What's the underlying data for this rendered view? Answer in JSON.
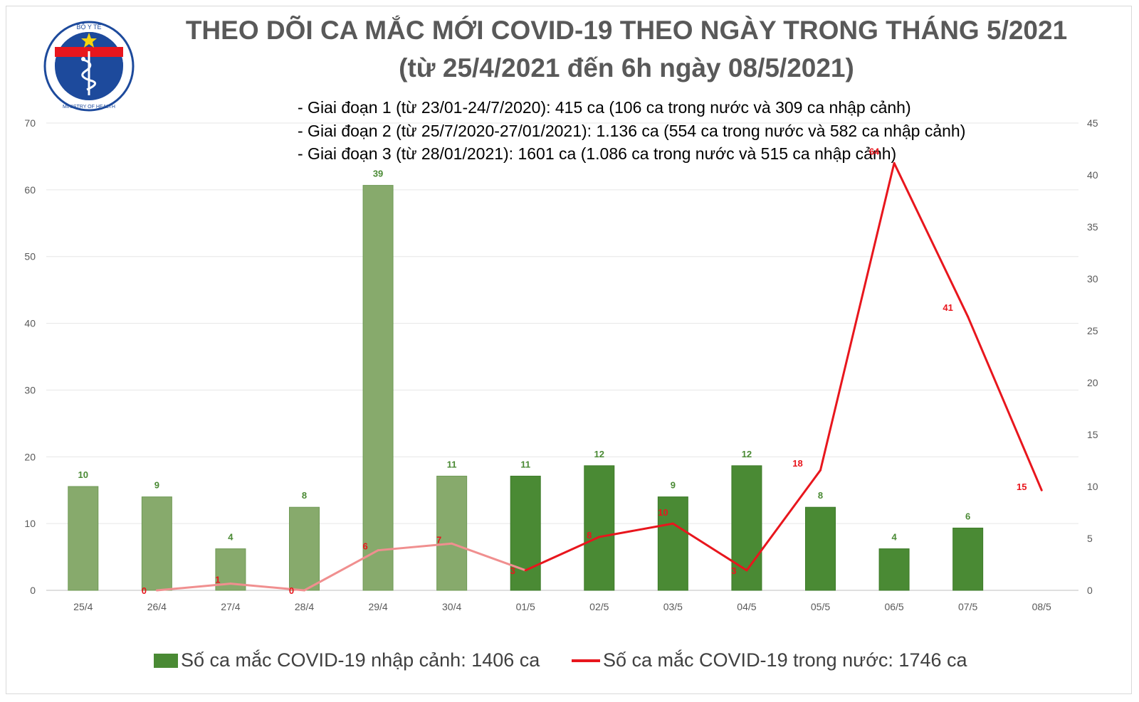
{
  "title": "THEO DÕI CA MẮC MỚI COVID-19 THEO NGÀY TRONG THÁNG 5/2021",
  "subtitle": "(từ 25/4/2021 đến 6h ngày 08/5/2021)",
  "notes": [
    "- Giai đoạn 1 (từ 23/01-24/7/2020): 415 ca (106 ca trong nước và 309 ca nhập cảnh)",
    "- Giai đoạn 2 (từ 25/7/2020-27/01/2021): 1.136 ca (554 ca trong nước và 582 ca nhập cảnh)",
    "- Giai đoạn 3 (từ 28/01/2021): 1601 ca (1.086 ca trong nước và 515 ca nhập cảnh)"
  ],
  "logo": {
    "top_text": "BỘ Y TẾ",
    "bottom_text": "MINISTRY OF HEALTH",
    "icon": "ministry-of-health-emblem"
  },
  "colors": {
    "bar_light": "#87aa6c",
    "bar_dark": "#4a8a34",
    "bar_label": "#4a8a34",
    "line_light": "#f08f8f",
    "line_dark": "#e8161d",
    "line_label": "#e8161d",
    "axis_text": "#595959",
    "grid": "#e6e6e6"
  },
  "chart_data": {
    "type": "bar+line",
    "categories": [
      "25/4",
      "26/4",
      "27/4",
      "28/4",
      "29/4",
      "30/4",
      "01/5",
      "02/5",
      "03/5",
      "04/5",
      "05/5",
      "06/5",
      "07/5",
      "08/5"
    ],
    "left_axis": {
      "ylim": [
        0,
        70
      ],
      "ticks": [
        0,
        10,
        20,
        30,
        40,
        50,
        60,
        70
      ]
    },
    "right_axis": {
      "ylim": [
        0,
        45
      ],
      "ticks": [
        0,
        5,
        10,
        15,
        20,
        25,
        30,
        35,
        40,
        45
      ]
    },
    "series": [
      {
        "name": "Số ca mắc COVID-19 nhập cảnh: 1406 ca",
        "type": "bar",
        "axis": "right",
        "values": [
          10,
          9,
          4,
          8,
          39,
          11,
          11,
          12,
          9,
          12,
          8,
          4,
          6,
          null
        ],
        "labels": [
          "10",
          "9",
          "4",
          "8",
          "39",
          "11",
          "11",
          "12",
          "9",
          "12",
          "8",
          "4",
          "6",
          ""
        ],
        "faded_until_index": 5
      },
      {
        "name": "Số ca mắc COVID-19 trong nước: 1746 ca",
        "type": "line",
        "axis": "left",
        "values": [
          null,
          0,
          1,
          0,
          6,
          7,
          3,
          8,
          10,
          3,
          18,
          64,
          41,
          15
        ],
        "labels": [
          "",
          "0",
          "1",
          "0",
          "6",
          "7",
          "3",
          "8",
          "10",
          "3",
          "18",
          "64",
          "41",
          "15"
        ],
        "faded_until_index": 6
      }
    ],
    "grid": true,
    "legend_position": "bottom"
  }
}
